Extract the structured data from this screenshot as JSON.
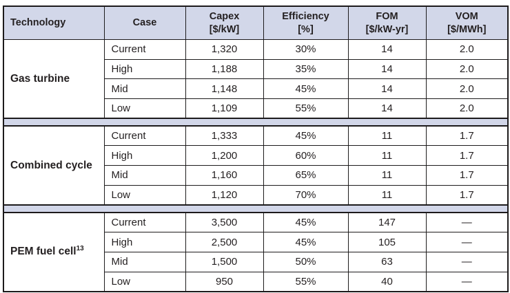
{
  "table": {
    "colors": {
      "header_bg": "#d2d7e9",
      "separator_bg": "#d2d7e9",
      "border": "#1c1a1b",
      "text": "#231f20"
    },
    "columns": [
      {
        "title": "Technology",
        "unit": ""
      },
      {
        "title": "Case",
        "unit": ""
      },
      {
        "title": "Capex",
        "unit": "[$/kW]"
      },
      {
        "title": "Efficiency",
        "unit": "[%]"
      },
      {
        "title": "FOM",
        "unit": "[$/kW-yr]"
      },
      {
        "title": "VOM",
        "unit": "[$/MWh]"
      }
    ],
    "sections": [
      {
        "technology": "Gas turbine",
        "footnote": "",
        "rows": [
          {
            "case": "Current",
            "capex": "1,320",
            "efficiency": "30%",
            "fom": "14",
            "vom": "2.0"
          },
          {
            "case": "High",
            "capex": "1,188",
            "efficiency": "35%",
            "fom": "14",
            "vom": "2.0"
          },
          {
            "case": "Mid",
            "capex": "1,148",
            "efficiency": "45%",
            "fom": "14",
            "vom": "2.0"
          },
          {
            "case": "Low",
            "capex": "1,109",
            "efficiency": "55%",
            "fom": "14",
            "vom": "2.0"
          }
        ]
      },
      {
        "technology": "Combined cycle",
        "footnote": "",
        "rows": [
          {
            "case": "Current",
            "capex": "1,333",
            "efficiency": "45%",
            "fom": "11",
            "vom": "1.7"
          },
          {
            "case": "High",
            "capex": "1,200",
            "efficiency": "60%",
            "fom": "11",
            "vom": "1.7"
          },
          {
            "case": "Mid",
            "capex": "1,160",
            "efficiency": "65%",
            "fom": "11",
            "vom": "1.7"
          },
          {
            "case": "Low",
            "capex": "1,120",
            "efficiency": "70%",
            "fom": "11",
            "vom": "1.7"
          }
        ]
      },
      {
        "technology": "PEM fuel cell",
        "footnote": "13",
        "rows": [
          {
            "case": "Current",
            "capex": "3,500",
            "efficiency": "45%",
            "fom": "147",
            "vom": "—"
          },
          {
            "case": "High",
            "capex": "2,500",
            "efficiency": "45%",
            "fom": "105",
            "vom": "—"
          },
          {
            "case": "Mid",
            "capex": "1,500",
            "efficiency": "50%",
            "fom": "63",
            "vom": "—"
          },
          {
            "case": "Low",
            "capex": "950",
            "efficiency": "55%",
            "fom": "40",
            "vom": "—"
          }
        ]
      }
    ]
  }
}
